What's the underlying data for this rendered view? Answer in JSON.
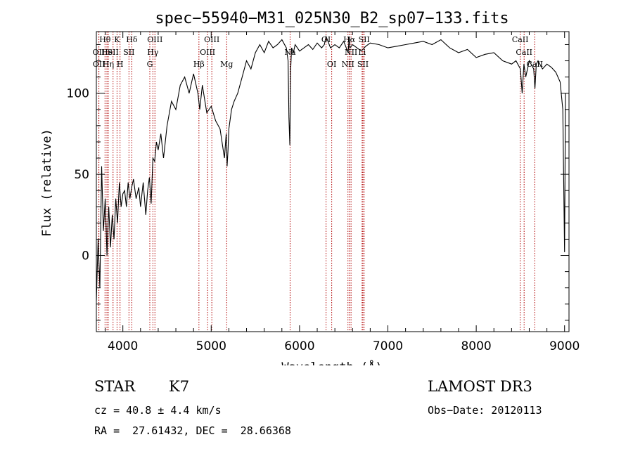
{
  "chart_data": {
    "type": "line",
    "title": "spec−55940−M31_025N30_B2_sp07−133.fits",
    "xlabel": "Wavelength (Å)",
    "ylabel": "Flux (relative)",
    "xlim": [
      3700,
      9050
    ],
    "ylim": [
      -47,
      138
    ],
    "xticks": [
      4000,
      5000,
      6000,
      7000,
      8000,
      9000
    ],
    "yticks": [
      0,
      50,
      100
    ],
    "spectrum": {
      "x": [
        3700,
        3720,
        3740,
        3760,
        3780,
        3800,
        3820,
        3840,
        3860,
        3880,
        3900,
        3920,
        3940,
        3960,
        3980,
        4000,
        4020,
        4040,
        4060,
        4080,
        4100,
        4120,
        4150,
        4180,
        4200,
        4230,
        4260,
        4280,
        4300,
        4320,
        4340,
        4360,
        4380,
        4400,
        4430,
        4460,
        4500,
        4550,
        4600,
        4650,
        4700,
        4750,
        4800,
        4850,
        4870,
        4900,
        4950,
        5000,
        5050,
        5100,
        5150,
        5170,
        5180,
        5190,
        5200,
        5230,
        5260,
        5300,
        5350,
        5400,
        5450,
        5500,
        5550,
        5600,
        5650,
        5700,
        5750,
        5800,
        5850,
        5870,
        5880,
        5890,
        5895,
        5900,
        5910,
        5930,
        5950,
        6000,
        6050,
        6100,
        6150,
        6200,
        6250,
        6280,
        6300,
        6350,
        6400,
        6450,
        6500,
        6550,
        6562,
        6570,
        6600,
        6650,
        6700,
        6750,
        6800,
        6900,
        7000,
        7100,
        7200,
        7300,
        7400,
        7500,
        7600,
        7700,
        7800,
        7900,
        8000,
        8100,
        8200,
        8300,
        8400,
        8450,
        8500,
        8520,
        8540,
        8560,
        8600,
        8650,
        8665,
        8680,
        8700,
        8750,
        8800,
        8850,
        8900,
        8950,
        8980,
        9000,
        9010
      ],
      "y": [
        -28,
        10,
        -20,
        55,
        15,
        35,
        0,
        30,
        5,
        25,
        10,
        35,
        20,
        45,
        30,
        38,
        40,
        30,
        45,
        35,
        42,
        47,
        35,
        42,
        30,
        45,
        25,
        40,
        48,
        32,
        60,
        58,
        70,
        65,
        75,
        60,
        80,
        95,
        90,
        105,
        110,
        100,
        112,
        100,
        90,
        105,
        88,
        92,
        83,
        78,
        60,
        75,
        55,
        65,
        78,
        90,
        95,
        100,
        110,
        120,
        115,
        125,
        130,
        125,
        132,
        128,
        130,
        133,
        128,
        120,
        85,
        68,
        95,
        115,
        128,
        125,
        130,
        126,
        128,
        130,
        127,
        131,
        128,
        130,
        135,
        128,
        130,
        128,
        132,
        125,
        135,
        128,
        130,
        128,
        126,
        129,
        131,
        130,
        128,
        129,
        130,
        131,
        132,
        130,
        133,
        128,
        125,
        127,
        122,
        124,
        125,
        120,
        118,
        120,
        115,
        100,
        118,
        110,
        120,
        115,
        103,
        118,
        120,
        115,
        118,
        116,
        113,
        107,
        90,
        2,
        100
      ]
    },
    "lines": [
      {
        "label": "Hθ",
        "wl": 3798,
        "row": 0
      },
      {
        "label": "OII",
        "wl": 3727,
        "row": 1
      },
      {
        "label": "OII",
        "wl": 3729,
        "row": 2
      },
      {
        "label": "He",
        "wl": 3820,
        "row": 1
      },
      {
        "label": "Hη",
        "wl": 3835,
        "row": 2
      },
      {
        "label": "K",
        "wl": 3934,
        "row": 0
      },
      {
        "label": "SII",
        "wl": 3889,
        "row": 1
      },
      {
        "label": "H",
        "wl": 3968,
        "row": 2
      },
      {
        "label": "Hδ",
        "wl": 4101,
        "row": 0
      },
      {
        "label": "SII",
        "wl": 4069,
        "row": 1
      },
      {
        "label": "OIII",
        "wl": 4363,
        "row": 0
      },
      {
        "label": "Hγ",
        "wl": 4340,
        "row": 1
      },
      {
        "label": "G",
        "wl": 4305,
        "row": 2
      },
      {
        "label": "Hβ",
        "wl": 4861,
        "row": 2
      },
      {
        "label": "OIII",
        "wl": 4959,
        "row": 1
      },
      {
        "label": "OIII",
        "wl": 5007,
        "row": 0
      },
      {
        "label": "Mg",
        "wl": 5175,
        "row": 2
      },
      {
        "label": "Na",
        "wl": 5893,
        "row": 1
      },
      {
        "label": "OI",
        "wl": 6300,
        "row": 0
      },
      {
        "label": "OI",
        "wl": 6364,
        "row": 2
      },
      {
        "label": "Hα",
        "wl": 6563,
        "row": 0
      },
      {
        "label": "NII",
        "wl": 6548,
        "row": 2
      },
      {
        "label": "NII",
        "wl": 6583,
        "row": 1
      },
      {
        "label": "SII",
        "wl": 6717,
        "row": 2
      },
      {
        "label": "SII",
        "wl": 6731,
        "row": 0
      },
      {
        "label": "Li",
        "wl": 6708,
        "row": 1
      },
      {
        "label": "CaII",
        "wl": 8498,
        "row": 0
      },
      {
        "label": "CaII",
        "wl": 8542,
        "row": 1
      },
      {
        "label": "CaII",
        "wl": 8662,
        "row": 2
      }
    ]
  },
  "info": {
    "class": "STAR",
    "subclass": "K7",
    "survey": "LAMOST DR3",
    "cz": "cz = 40.8 ± 4.4 km/s",
    "obs_date": "Obs−Date: 20120113",
    "radec": "RA =  27.61432, DEC =  28.66368"
  },
  "colors": {
    "line": "#000000",
    "marker": "#b00000"
  }
}
